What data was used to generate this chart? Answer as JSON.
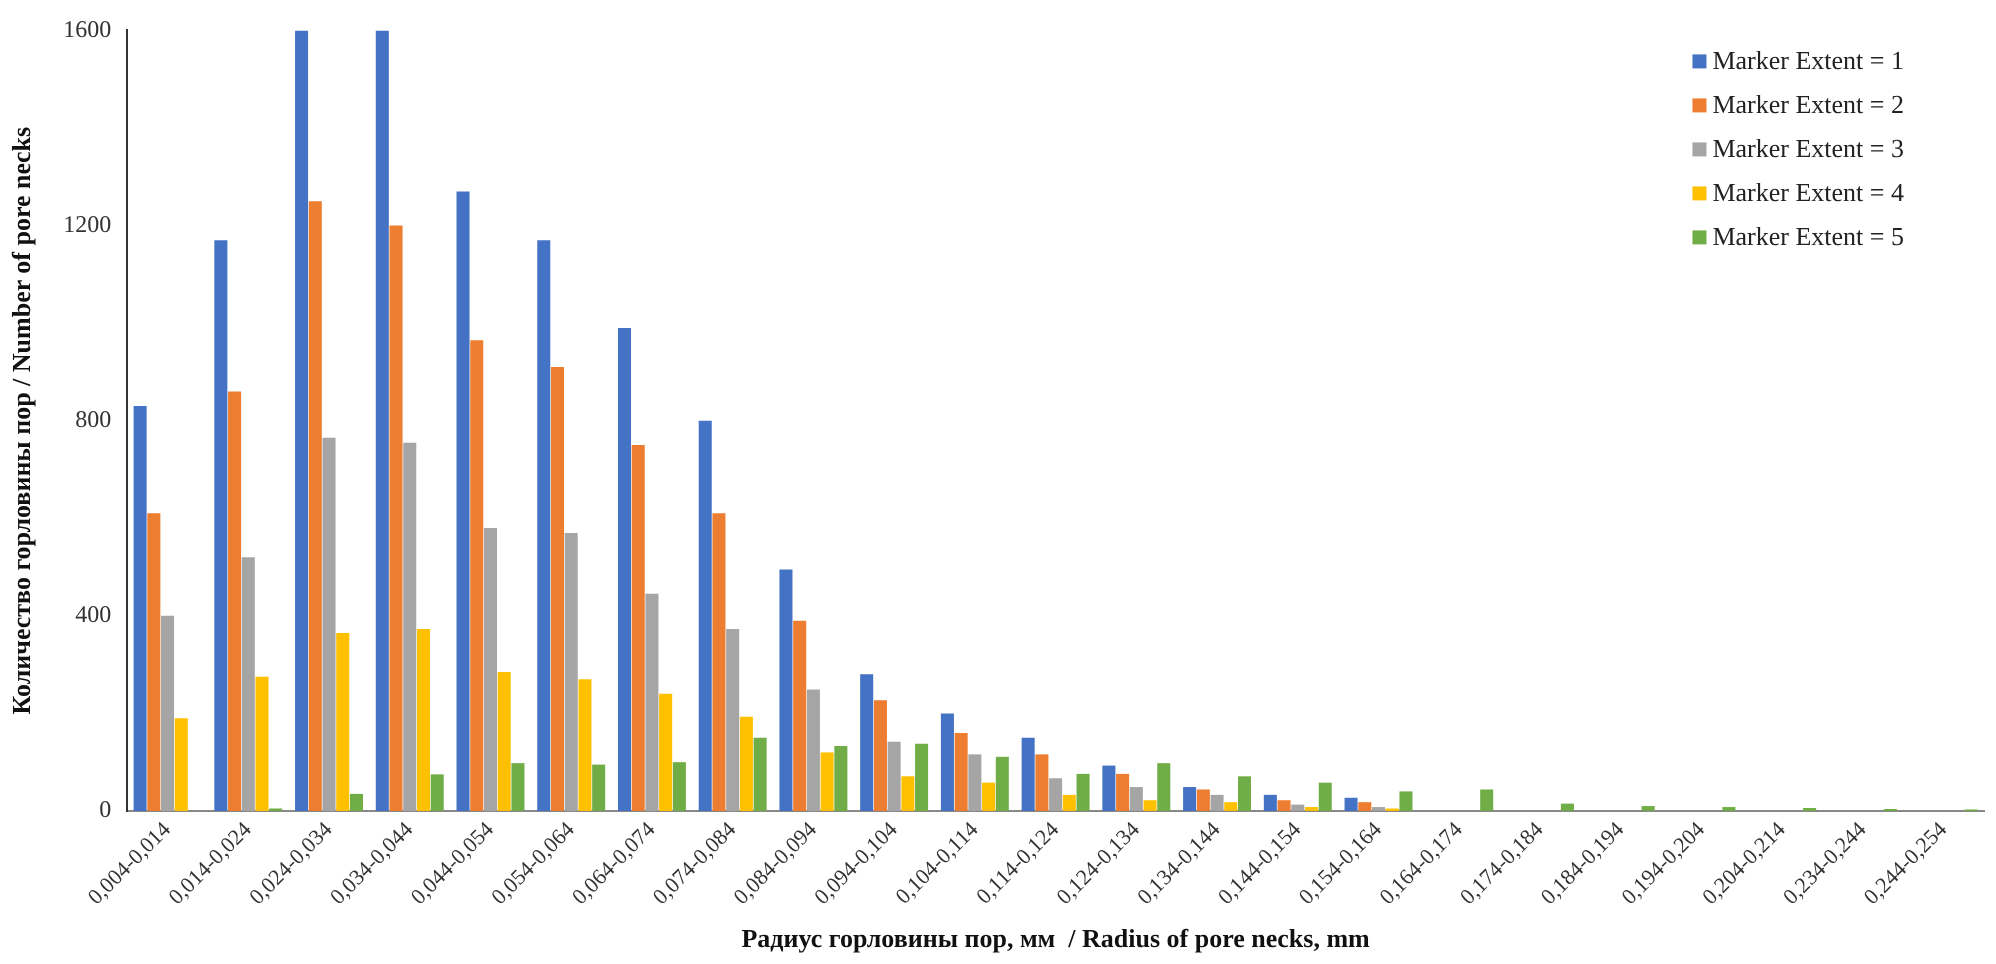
{
  "chart_data": {
    "type": "bar",
    "xlabel": "Радиус горловины пор, мм  / Radius of pore necks, mm",
    "ylabel": "Количество горловины пор / Number of pore necks",
    "categories": [
      "0,004-0,014",
      "0,014-0,024",
      "0,024-0,034",
      "0,034-0,044",
      "0,044-0,054",
      "0,054-0,064",
      "0,064-0,074",
      "0,074-0,084",
      "0,084-0,094",
      "0,094-0,104",
      "0,104-0,114",
      "0,114-0,124",
      "0,124-0,134",
      "0,134-0,144",
      "0,144-0,154",
      "0,154-0,164",
      "0,164-0,174",
      "0,174-0,184",
      "0,184-0,194",
      "0,194-0,204",
      "0,204-0,214",
      "0,234-0,244",
      "0,244-0,254"
    ],
    "series": [
      {
        "name": "Marker Extent = 1",
        "color": "#4472c4",
        "values": [
          830,
          1170,
          1600,
          1600,
          1270,
          1170,
          990,
          800,
          495,
          280,
          200,
          150,
          93,
          49,
          33,
          27,
          null,
          null,
          null,
          null,
          null,
          null,
          null
        ]
      },
      {
        "name": "Marker Extent = 2",
        "color": "#ed7d31",
        "values": [
          610,
          860,
          1250,
          1200,
          965,
          910,
          750,
          610,
          390,
          227,
          160,
          116,
          76,
          44,
          22,
          18,
          null,
          null,
          null,
          null,
          null,
          null,
          null
        ]
      },
      {
        "name": "Marker Extent = 3",
        "color": "#a5a5a5",
        "values": [
          400,
          520,
          765,
          755,
          580,
          570,
          445,
          373,
          249,
          142,
          116,
          67,
          49,
          33,
          13,
          8,
          null,
          null,
          null,
          null,
          null,
          null,
          null
        ]
      },
      {
        "name": "Marker Extent = 4",
        "color": "#ffc000",
        "values": [
          190,
          275,
          365,
          373,
          285,
          270,
          240,
          193,
          120,
          71,
          58,
          33,
          22,
          18,
          8,
          5,
          null,
          null,
          null,
          null,
          null,
          null,
          null
        ]
      },
      {
        "name": "Marker Extent = 5",
        "color": "#70ad47",
        "values": [
          0,
          5,
          35,
          75,
          98,
          95,
          100,
          150,
          133,
          138,
          111,
          76,
          98,
          71,
          58,
          40,
          44,
          15,
          10,
          8,
          6,
          4,
          3
        ]
      }
    ],
    "ylim": [
      0,
      1600
    ],
    "yticks": [
      0,
      400,
      800,
      1200,
      1600
    ],
    "legend": "top right"
  }
}
